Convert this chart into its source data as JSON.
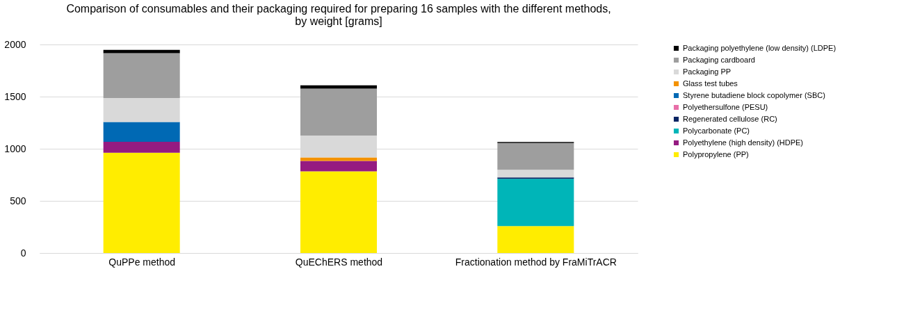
{
  "chart_data": {
    "type": "bar",
    "stacked": true,
    "title": [
      "Comparison of consumables and their packaging required for preparing 16 samples with the different methods,",
      "by weight [grams]"
    ],
    "categories": [
      "QuPPe method",
      "QuEChERS method",
      "Fractionation method by FraMiTrACR"
    ],
    "series": [
      {
        "name": "Polypropylene (PP)",
        "color": "#ffed00",
        "values": [
          962,
          783,
          259
        ]
      },
      {
        "name": "Polyethylene (high density) (HDPE)",
        "color": "#951b81",
        "values": [
          104,
          100,
          null
        ]
      },
      {
        "name": "Polycarbonate (PC)",
        "color": "#00b5b8",
        "values": [
          null,
          null,
          453
        ]
      },
      {
        "name": "Regenerated cellulose (RC)",
        "color": "#0a2463",
        "values": [
          null,
          null,
          13
        ]
      },
      {
        "name": "Polyethersulfone (PESU)",
        "color": "#e86fa8",
        "values": [
          null,
          null,
          null
        ]
      },
      {
        "name": "Styrene butadiene block copolymer (SBC)",
        "color": "#0069b4",
        "values": [
          191,
          null,
          null
        ]
      },
      {
        "name": "Glass test tubes",
        "color": "#f39200",
        "values": [
          null,
          33,
          null
        ]
      },
      {
        "name": "Packaging PP",
        "color": "#d9d9d9",
        "values": [
          230,
          210,
          74
        ]
      },
      {
        "name": "Packaging cardboard",
        "color": "#9e9e9e",
        "values": [
          430,
          450,
          256
        ]
      },
      {
        "name": "Packaging polyethylene (low density) (LDPE)",
        "color": "#000000",
        "values": [
          31,
          32,
          10
        ]
      }
    ],
    "ylim": [
      0,
      2000
    ],
    "yticks": [
      0,
      500,
      1000,
      1500,
      2000
    ],
    "grid": "y",
    "legend": "right"
  }
}
